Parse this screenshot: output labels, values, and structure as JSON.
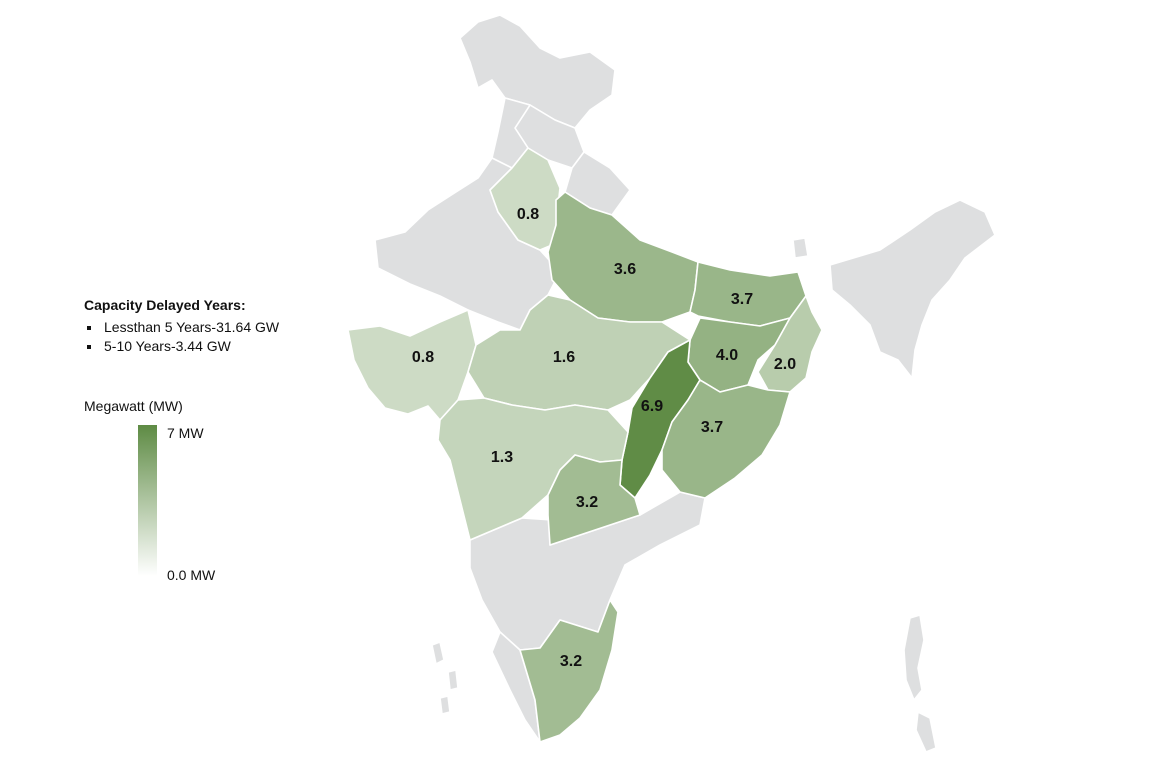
{
  "legend": {
    "title": "Capacity Delayed Years:",
    "items": [
      "Lessthan 5 Years-31.64 GW",
      "5-10 Years-3.44 GW"
    ]
  },
  "scale": {
    "title": "Megawatt (MW)",
    "max_label": "7 MW",
    "min_label": "0.0 MW",
    "max": 7,
    "min": 0,
    "color_high": "#5e8b44",
    "color_low": "#ffffff"
  },
  "map_data": {
    "no_data_color": "#dedfe0",
    "regions": [
      {
        "value": 0.8,
        "label": "0.8"
      },
      {
        "value": 3.6,
        "label": "3.6"
      },
      {
        "value": 3.7,
        "label": "3.7"
      },
      {
        "value": 0.8,
        "label": "0.8"
      },
      {
        "value": 1.6,
        "label": "1.6"
      },
      {
        "value": 4.0,
        "label": "4.0"
      },
      {
        "value": 2.0,
        "label": "2.0"
      },
      {
        "value": 6.9,
        "label": "6.9"
      },
      {
        "value": 3.7,
        "label": "3.7"
      },
      {
        "value": 1.3,
        "label": "1.3"
      },
      {
        "value": 3.2,
        "label": "3.2"
      },
      {
        "value": 3.2,
        "label": "3.2"
      }
    ]
  }
}
